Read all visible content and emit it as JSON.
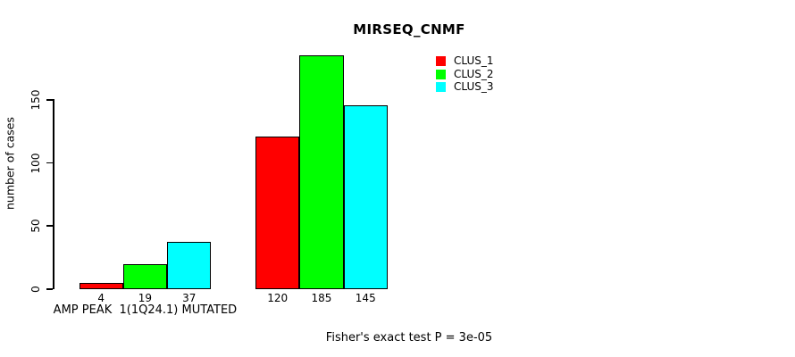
{
  "chart_data": {
    "type": "bar",
    "title": "MIRSEQ_CNMF",
    "ylabel": "number of cases",
    "xlabel": "",
    "footnote": "Fisher's exact test P = 3e-05",
    "yticks": [
      0,
      50,
      100,
      150
    ],
    "ylim": [
      0,
      185
    ],
    "grid": false,
    "legend_position": "top-right",
    "categories": [
      "AMP PEAK  1(1Q24.1) MUTATED",
      ""
    ],
    "series": [
      {
        "name": "CLUS_1",
        "color": "#ff0000",
        "values": [
          4,
          120
        ]
      },
      {
        "name": "CLUS_2",
        "color": "#00ff00",
        "values": [
          19,
          185
        ]
      },
      {
        "name": "CLUS_3",
        "color": "#00ffff",
        "values": [
          37,
          145
        ]
      }
    ],
    "bar_value_labels": [
      [
        4,
        19,
        37
      ],
      [
        120,
        185,
        145
      ]
    ],
    "colors": {
      "bar_border": "#000000",
      "axis": "#000000",
      "text": "#000000",
      "background": "#ffffff"
    }
  }
}
